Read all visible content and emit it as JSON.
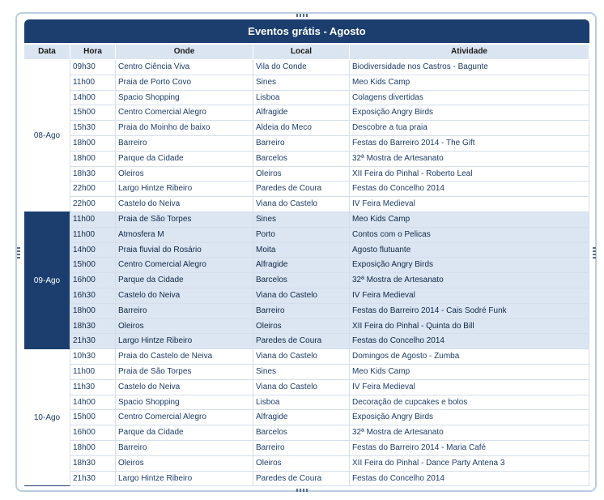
{
  "table": {
    "title": "Eventos grátis - Agosto",
    "columns": [
      "Data",
      "Hora",
      "Onde",
      "Local",
      "Atividade"
    ],
    "groups": [
      {
        "date": "08-Ago",
        "rows": [
          [
            "09h30",
            "Centro Ciência Viva",
            "Vila do Conde",
            "Biodiversidade nos Castros - Bagunte"
          ],
          [
            "11h00",
            "Praia de Porto Covo",
            "Sines",
            "Meo Kids Camp"
          ],
          [
            "14h00",
            "Spacio Shopping",
            "Lisboa",
            "Colagens divertidas"
          ],
          [
            "15h00",
            "Centro Comercial Alegro",
            "Alfragide",
            "Exposição Angry Birds"
          ],
          [
            "15h30",
            "Praia do Moinho de baixo",
            "Aldeia do Meco",
            "Descobre a tua praia"
          ],
          [
            "18h00",
            "Barreiro",
            "Barreiro",
            "Festas do Barreiro 2014 - The Gift"
          ],
          [
            "18h00",
            "Parque da Cidade",
            "Barcelos",
            "32ª Mostra de Artesanato"
          ],
          [
            "18h30",
            "Oleiros",
            "Oleiros",
            "XII Feira do Pinhal - Roberto Leal"
          ],
          [
            "22h00",
            "Largo Hintze Ribeiro",
            "Paredes de Coura",
            "Festas do Concelho 2014"
          ],
          [
            "22h00",
            "Castelo do Neiva",
            "Viana do Castelo",
            "IV Feira Medieval"
          ]
        ]
      },
      {
        "date": "09-Ago",
        "rows": [
          [
            "11h00",
            "Praia de São Torpes",
            "Sines",
            "Meo Kids Camp"
          ],
          [
            "11h00",
            "Atmosfera M",
            "Porto",
            "Contos com o Pelicas"
          ],
          [
            "14h00",
            "Praia fluvial do Rosário",
            "Moita",
            "Agosto flutuante"
          ],
          [
            "15h00",
            "Centro Comercial Alegro",
            "Alfragide",
            "Exposição Angry Birds"
          ],
          [
            "16h00",
            "Parque da Cidade",
            "Barcelos",
            "32ª Mostra de Artesanato"
          ],
          [
            "16h30",
            "Castelo do Neiva",
            "Viana do Castelo",
            "IV Feira Medieval"
          ],
          [
            "18h00",
            "Barreiro",
            "Barreiro",
            "Festas do Barreiro 2014 - Cais Sodré Funk"
          ],
          [
            "18h30",
            "Oleiros",
            "Oleiros",
            "XII Feira do Pinhal - Quinta do Bill"
          ],
          [
            "21h30",
            "Largo Hintze Ribeiro",
            "Paredes de Coura",
            "Festas do Concelho 2014"
          ]
        ]
      },
      {
        "date": "10-Ago",
        "rows": [
          [
            "10h30",
            "Praia do Castelo de Neiva",
            "Viana do Castelo",
            "Domingos de Agosto - Zumba"
          ],
          [
            "11h00",
            "Praia de São Torpes",
            "Sines",
            "Meo Kids Camp"
          ],
          [
            "11h30",
            "Castelo do Neiva",
            "Viana do Castelo",
            "IV Feira Medieval"
          ],
          [
            "14h00",
            "Spacio Shopping",
            "Lisboa",
            "Decoração de cupcakes e bolos"
          ],
          [
            "15h00",
            "Centro Comercial Alegro",
            "Alfragide",
            "Exposição Angry Birds"
          ],
          [
            "16h00",
            "Parque da Cidade",
            "Barcelos",
            "32ª Mostra de Artesanato"
          ],
          [
            "18h00",
            "Barreiro",
            "Barreiro",
            "Festas do Barreiro 2014 - Maria Café"
          ],
          [
            "18h30",
            "Oleiros",
            "Oleiros",
            "XII Feira do Pinhal - Dance Party Antena 3"
          ],
          [
            "21h30",
            "Largo Hintze Ribeiro",
            "Paredes de Coura",
            "Festas do Concelho 2014"
          ]
        ]
      }
    ]
  }
}
